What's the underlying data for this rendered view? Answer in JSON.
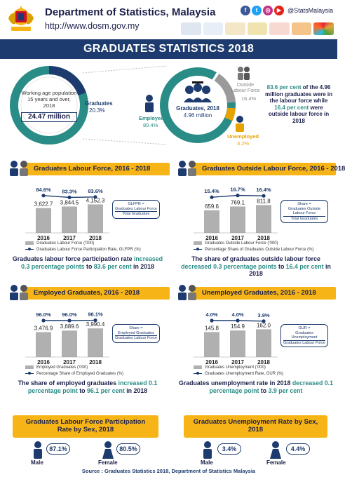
{
  "header": {
    "department": "Department of Statistics, Malaysia",
    "url": "http://www.dosm.gov.my",
    "social_handle": "@StatsMalaysia",
    "title": "GRADUATES STATISTICS 2018"
  },
  "overview": {
    "working_age_label": "Working age population 15 years and over, 2018",
    "working_age_value": "24.47 million",
    "graduates_label": "Graduates",
    "graduates_pct": "20.3%",
    "graduates_2018_label": "Graduates, 2018",
    "graduates_2018_value": "4.96 million",
    "employed_label": "Employed",
    "employed_pct": "80.4%",
    "outside_label": "Outside Labour Force",
    "outside_pct": "16.4%",
    "unemployed_label": "Unemployed",
    "unemployed_pct": "3.2%",
    "statement_a": "83.6 per cent",
    "statement_b": " of the 4.96 million graduates were in the labour force while ",
    "statement_c": "16.4 per cent",
    "statement_d": " were outside labour force in 2018"
  },
  "colors": {
    "navy": "#1d3b6e",
    "teal": "#2a8c86",
    "orange": "#f6b416",
    "grey_bar": "#b0b0b0",
    "gold": "#e8a200"
  },
  "chart_data": [
    {
      "type": "bar",
      "title": "Graduates Labour Force, 2016 - 2018",
      "categories": [
        "2016",
        "2017",
        "2018"
      ],
      "series": [
        {
          "name": "Graduates Labour Force ('000)",
          "values": [
            3622.7,
            3844.5,
            4152.3
          ],
          "labels": [
            "3,622.7",
            "3,844.5",
            "4,152.3"
          ]
        },
        {
          "name": "Graduates Labour Force Participation Rate, GLFPR (%)",
          "values": [
            84.6,
            83.3,
            83.6
          ],
          "labels": [
            "84.6%",
            "83.3%",
            "83.6%"
          ]
        }
      ],
      "formula": {
        "lhs": "GLFPR =",
        "num": "Graduates Labour Force",
        "den": "Total Graduates"
      },
      "summary_a": "Graduates labour force participation rate ",
      "summary_b": "increased 0.3 percentage points",
      "summary_c": " to ",
      "summary_d": "83.6 per cent",
      "summary_e": " in 2018"
    },
    {
      "type": "bar",
      "title": "Graduates Outside Labour Force, 2016 - 2018",
      "categories": [
        "2016",
        "2017",
        "2018"
      ],
      "series": [
        {
          "name": "Graduates Outside Labour Force ('000)",
          "values": [
            659.6,
            769.1,
            811.8
          ],
          "labels": [
            "659.6",
            "769.1",
            "811.8"
          ]
        },
        {
          "name": "Percentage Share of Graduates Outside Labour Force (%)",
          "values": [
            15.4,
            16.7,
            16.4
          ],
          "labels": [
            "15.4%",
            "16.7%",
            "16.4%"
          ]
        }
      ],
      "formula": {
        "lhs": "Share =",
        "num": "Graduates Outside Labour Force",
        "den": "Total Graduates"
      },
      "summary_a": "The share of graduates outside labour force ",
      "summary_b": "decreased 0.3 percentage points",
      "summary_c": " to ",
      "summary_d": "16.4 per cent",
      "summary_e": " in 2018"
    },
    {
      "type": "bar",
      "title": "Employed Graduates, 2016 - 2018",
      "categories": [
        "2016",
        "2017",
        "2018"
      ],
      "series": [
        {
          "name": "Employed Graduates ('000)",
          "values": [
            3476.9,
            3689.6,
            3990.4
          ],
          "labels": [
            "3,476.9",
            "3,689.6",
            "3,990.4"
          ]
        },
        {
          "name": "Percentage Share of Employed Graduates (%)",
          "values": [
            96.0,
            96.0,
            96.1
          ],
          "labels": [
            "96.0%",
            "96.0%",
            "96.1%"
          ]
        }
      ],
      "formula": {
        "lhs": "Share =",
        "num": "Employed Graduates",
        "den": "Graduates Labour Force"
      },
      "summary_a": "The share of employed graduates ",
      "summary_b": "increased 0.1 percentage point",
      "summary_c": " to ",
      "summary_d": "96.1 per cent",
      "summary_e": " in 2018"
    },
    {
      "type": "bar",
      "title": "Unemployed Graduates, 2016 - 2018",
      "categories": [
        "2016",
        "2017",
        "2018"
      ],
      "series": [
        {
          "name": "Graduates Unemployment ('000)",
          "values": [
            145.8,
            154.9,
            162.0
          ],
          "labels": [
            "145.8",
            "154.9",
            "162.0"
          ]
        },
        {
          "name": "Graduates Unemployment Rate, GUR (%)",
          "values": [
            4.0,
            4.0,
            3.9
          ],
          "labels": [
            "4.0%",
            "4.0%",
            "3.9%"
          ]
        }
      ],
      "formula": {
        "lhs": "GUR =",
        "num": "Graduates Unemployment",
        "den": "Graduates Labour Force"
      },
      "summary_a": "Graduates unemployment rate in 2018 ",
      "summary_b": "decreased 0.1 percentage point",
      "summary_c": " to ",
      "summary_d": "3.9 per cent",
      "summary_e": ""
    }
  ],
  "by_sex": {
    "glfpr_title": "Graduates Labour Force Participation Rate by Sex, 2018",
    "gur_title": "Graduates Unemployment Rate by Sex, 2018",
    "male_label": "Male",
    "female_label": "Female",
    "glfpr_male": "87.1%",
    "glfpr_female": "80.5%",
    "gur_male": "3.4%",
    "gur_female": "4.4%"
  },
  "footer": {
    "source": "Source : Graduates Statistics 2018, Department of Statistics Malaysia"
  }
}
